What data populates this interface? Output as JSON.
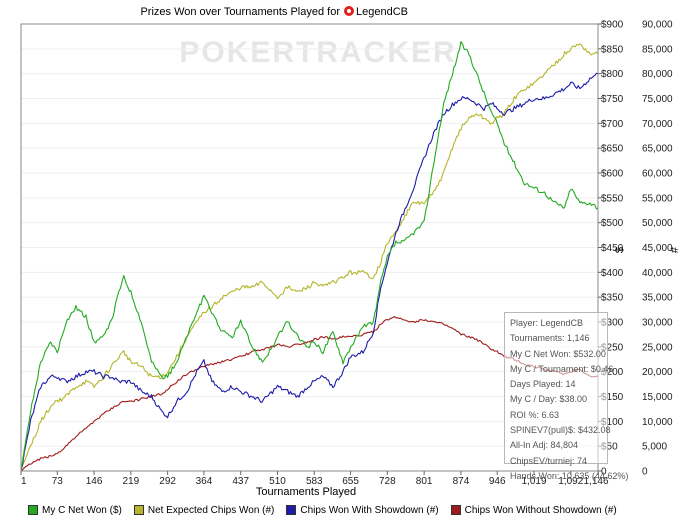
{
  "chart_data": {
    "type": "line",
    "title": "Prizes Won over Tournaments Played for",
    "player_name": "LegendCB",
    "watermark": "POKERTRACKER",
    "xlabel": "Tournaments Played",
    "ylabel_left": "$",
    "ylabel_right": "#",
    "xlim": [
      1,
      1146
    ],
    "ylim_left": [
      0,
      900
    ],
    "ylim_right": [
      0,
      90000
    ],
    "x_ticks": [
      1,
      73,
      146,
      219,
      292,
      364,
      437,
      510,
      583,
      655,
      728,
      801,
      874,
      946,
      1019,
      1092,
      1146
    ],
    "x_tick_labels": [
      "1",
      "73",
      "146",
      "219",
      "292",
      "364",
      "437",
      "510",
      "583",
      "655",
      "728",
      "801",
      "874",
      "946",
      "1,019",
      "1,092",
      "1,146"
    ],
    "y_left_tick_labels": [
      "0",
      "$50",
      "$100",
      "$150",
      "$200",
      "$250",
      "$300",
      "$350",
      "$400",
      "$450",
      "$500",
      "$550",
      "$600",
      "$650",
      "$700",
      "$750",
      "$800",
      "$850",
      "$900"
    ],
    "y_right_tick_labels": [
      "0",
      "5,000",
      "10,000",
      "15,000",
      "20,000",
      "25,000",
      "30,000",
      "35,000",
      "40,000",
      "45,000",
      "50,000",
      "55,000",
      "60,000",
      "65,000",
      "70,000",
      "75,000",
      "80,000",
      "85,000",
      "90,000"
    ],
    "series": [
      {
        "name": "My C Net Won ($)",
        "axis": "left",
        "color": "#22aa22",
        "x": [
          1,
          20,
          40,
          60,
          73,
          90,
          110,
          130,
          146,
          165,
          180,
          195,
          205,
          219,
          240,
          260,
          280,
          292,
          310,
          330,
          350,
          364,
          380,
          400,
          420,
          437,
          460,
          480,
          500,
          510,
          530,
          550,
          570,
          583,
          600,
          620,
          640,
          655,
          680,
          700,
          715,
          728,
          745,
          760,
          780,
          801,
          820,
          840,
          860,
          874,
          890,
          905,
          920,
          935,
          946,
          960,
          980,
          1000,
          1019,
          1040,
          1060,
          1080,
          1092,
          1110,
          1130,
          1146
        ],
        "values": [
          0,
          120,
          220,
          260,
          240,
          300,
          330,
          310,
          260,
          270,
          300,
          360,
          390,
          360,
          300,
          220,
          190,
          190,
          220,
          270,
          320,
          350,
          320,
          280,
          270,
          300,
          250,
          220,
          250,
          270,
          300,
          270,
          250,
          260,
          240,
          280,
          220,
          250,
          290,
          300,
          380,
          430,
          460,
          460,
          480,
          500,
          620,
          740,
          810,
          860,
          840,
          800,
          760,
          720,
          700,
          660,
          620,
          580,
          570,
          560,
          540,
          530,
          570,
          540,
          540,
          530
        ]
      },
      {
        "name": "Net Expected Chips Won (#)",
        "axis": "right",
        "color": "#b5b52a",
        "x": [
          1,
          20,
          40,
          60,
          73,
          90,
          110,
          130,
          146,
          165,
          180,
          195,
          205,
          219,
          240,
          260,
          280,
          292,
          310,
          330,
          350,
          364,
          380,
          400,
          420,
          437,
          460,
          480,
          500,
          510,
          530,
          550,
          570,
          583,
          600,
          620,
          640,
          655,
          680,
          700,
          715,
          728,
          745,
          760,
          780,
          801,
          820,
          840,
          860,
          874,
          890,
          905,
          920,
          935,
          946,
          960,
          980,
          1000,
          1019,
          1040,
          1060,
          1080,
          1092,
          1110,
          1130,
          1146
        ],
        "values": [
          0,
          5000,
          10000,
          13000,
          14000,
          15000,
          17000,
          18000,
          17000,
          19000,
          21000,
          23000,
          24000,
          22000,
          21000,
          19000,
          19000,
          20000,
          23000,
          27000,
          30000,
          32000,
          33000,
          35000,
          36000,
          37000,
          37000,
          38000,
          36000,
          35000,
          37000,
          36000,
          37000,
          38000,
          37000,
          38000,
          39000,
          40000,
          40000,
          39000,
          42000,
          46000,
          48000,
          51000,
          54000,
          54000,
          56000,
          60000,
          66000,
          69000,
          71000,
          72000,
          71000,
          70000,
          71000,
          72000,
          75000,
          77000,
          78000,
          80000,
          82000,
          84000,
          85000,
          86000,
          84000,
          84000
        ]
      },
      {
        "name": "Chips Won With Showdown (#)",
        "axis": "right",
        "color": "#1c1ca8",
        "x": [
          1,
          20,
          40,
          60,
          73,
          90,
          110,
          130,
          146,
          165,
          180,
          195,
          205,
          219,
          240,
          260,
          280,
          292,
          310,
          330,
          350,
          364,
          380,
          400,
          420,
          437,
          460,
          480,
          500,
          510,
          530,
          550,
          570,
          583,
          600,
          620,
          640,
          655,
          680,
          700,
          715,
          728,
          745,
          760,
          780,
          801,
          820,
          840,
          860,
          874,
          890,
          905,
          920,
          935,
          946,
          960,
          980,
          1000,
          1019,
          1040,
          1060,
          1080,
          1092,
          1110,
          1130,
          1146
        ],
        "values": [
          0,
          10000,
          17000,
          19000,
          19000,
          18000,
          19000,
          20000,
          20000,
          19000,
          19000,
          18000,
          18000,
          18000,
          16000,
          15000,
          12000,
          11000,
          14000,
          16000,
          20000,
          22000,
          18000,
          16000,
          17000,
          16000,
          15000,
          14000,
          16000,
          17000,
          16000,
          15000,
          17000,
          18000,
          19000,
          17000,
          20000,
          23000,
          24000,
          28000,
          37000,
          42000,
          48000,
          52000,
          57000,
          63000,
          68000,
          72000,
          74000,
          75000,
          75000,
          74000,
          73000,
          74000,
          73000,
          72000,
          73000,
          74000,
          75000,
          75000,
          76000,
          77000,
          78000,
          77000,
          79000,
          80000
        ]
      },
      {
        "name": "Chips Won Without Showdown (#)",
        "axis": "right",
        "color": "#a01c1c",
        "x": [
          1,
          20,
          40,
          60,
          73,
          90,
          110,
          130,
          146,
          165,
          180,
          195,
          205,
          219,
          240,
          260,
          280,
          292,
          310,
          330,
          350,
          364,
          380,
          400,
          420,
          437,
          460,
          480,
          500,
          510,
          530,
          550,
          570,
          583,
          600,
          620,
          640,
          655,
          680,
          700,
          715,
          728,
          745,
          760,
          780,
          801,
          820,
          840,
          860,
          874,
          890,
          905,
          920,
          935,
          946,
          960,
          980,
          1000,
          1019,
          1040,
          1060,
          1080,
          1092,
          1110,
          1130,
          1146
        ],
        "values": [
          0,
          1500,
          2500,
          3000,
          3500,
          5000,
          7000,
          8500,
          10000,
          11500,
          12500,
          13500,
          14000,
          14000,
          14500,
          15000,
          15500,
          16500,
          18000,
          19500,
          20500,
          21000,
          21500,
          22000,
          22500,
          23000,
          24000,
          24500,
          25000,
          25500,
          25000,
          25500,
          26000,
          26500,
          27000,
          26500,
          27000,
          27000,
          27500,
          28000,
          29500,
          30500,
          31000,
          30500,
          30000,
          30500,
          30000,
          29500,
          28500,
          27500,
          27000,
          26500,
          25500,
          24500,
          24000,
          23000,
          22500,
          21500,
          21000,
          20500,
          20000,
          19500,
          20000,
          20500,
          19000,
          19000
        ]
      }
    ],
    "legend": {
      "placement": "bottom",
      "items": [
        {
          "label": "My C Net Won ($)",
          "color": "#22aa22"
        },
        {
          "label": "Net Expected Chips Won (#)",
          "color": "#b5b52a"
        },
        {
          "label": "Chips Won With Showdown (#)",
          "color": "#1c1ca8"
        },
        {
          "label": "Chips Won Without Showdown (#)",
          "color": "#a01c1c"
        }
      ]
    }
  },
  "stats_box": {
    "lines": [
      "Player: LegendCB",
      "Tournaments: 1,146",
      "My C Net Won: $532.00",
      "My C / Tournament: $0.46",
      "Days Played: 14",
      "My C / Day: $38.00",
      "ROI %: 6.63",
      "SPINEV7(pull)$: $432.08",
      "All-In Adj: 84,804",
      "ChipsEV/turniej: 74",
      "Hands Won: 10,635 (44.62%)"
    ]
  }
}
